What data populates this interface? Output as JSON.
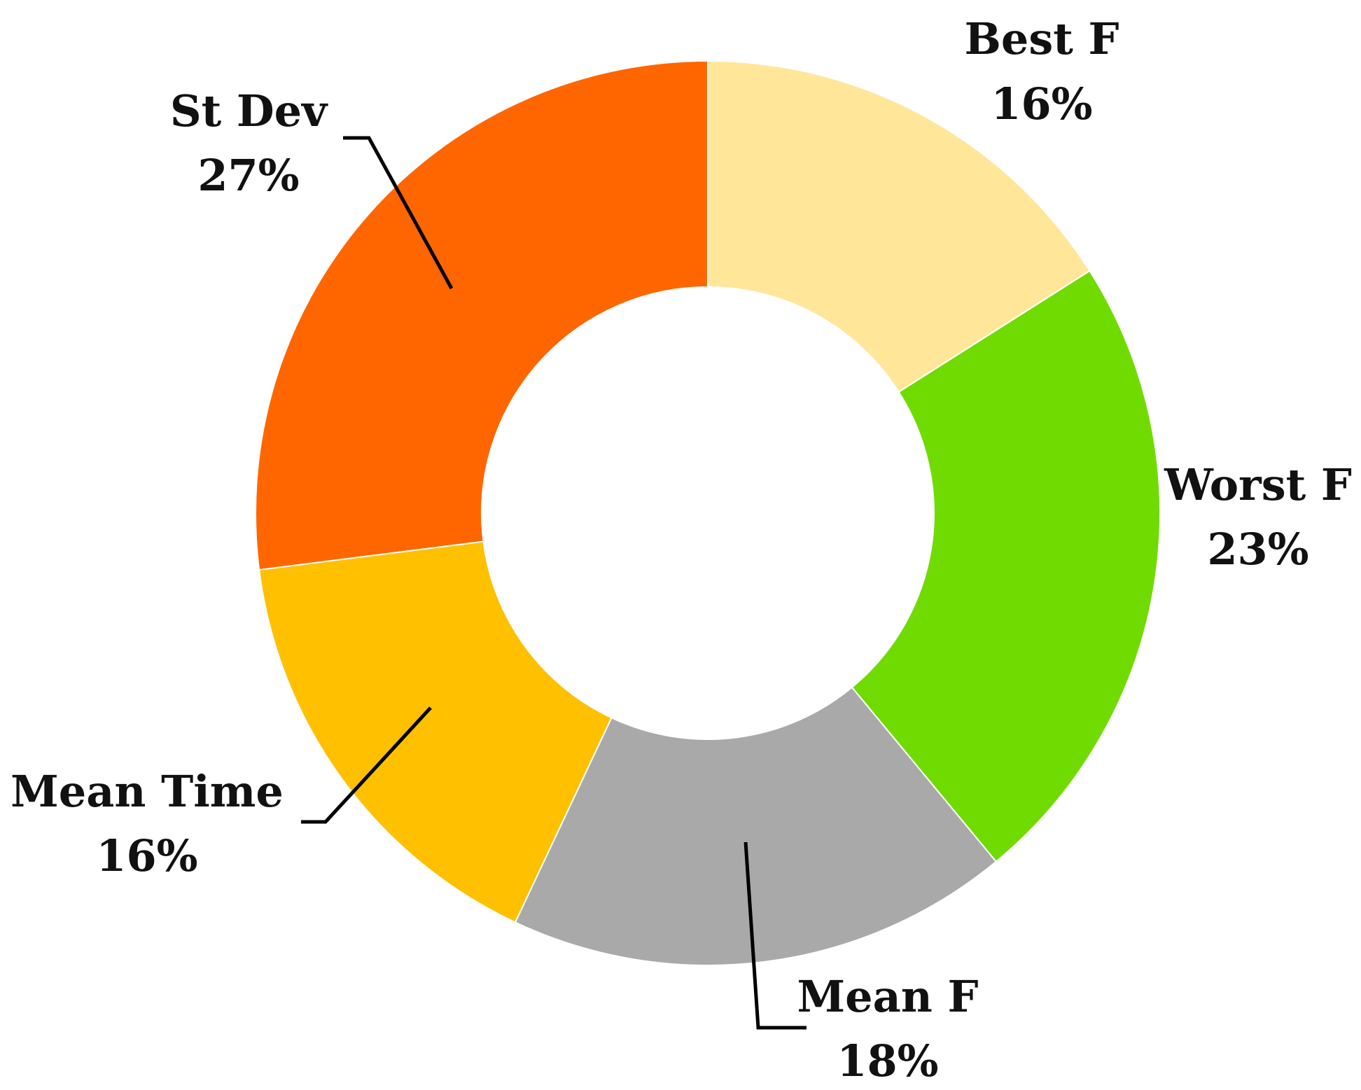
{
  "chart_data": {
    "type": "pie",
    "variant": "donut",
    "labels": [
      "Best F",
      "Worst F",
      "Mean F",
      "Mean Time",
      "St Dev"
    ],
    "values": [
      16,
      23,
      18,
      16,
      27
    ],
    "value_labels": [
      "16%",
      "23%",
      "18%",
      "16%",
      "27%"
    ],
    "colors": [
      "#FFE699",
      "#70DB00",
      "#A9A9A9",
      "#FFC000",
      "#FF6600"
    ],
    "start_angle": "12 o'clock",
    "direction": "clockwise",
    "legend": "none"
  }
}
